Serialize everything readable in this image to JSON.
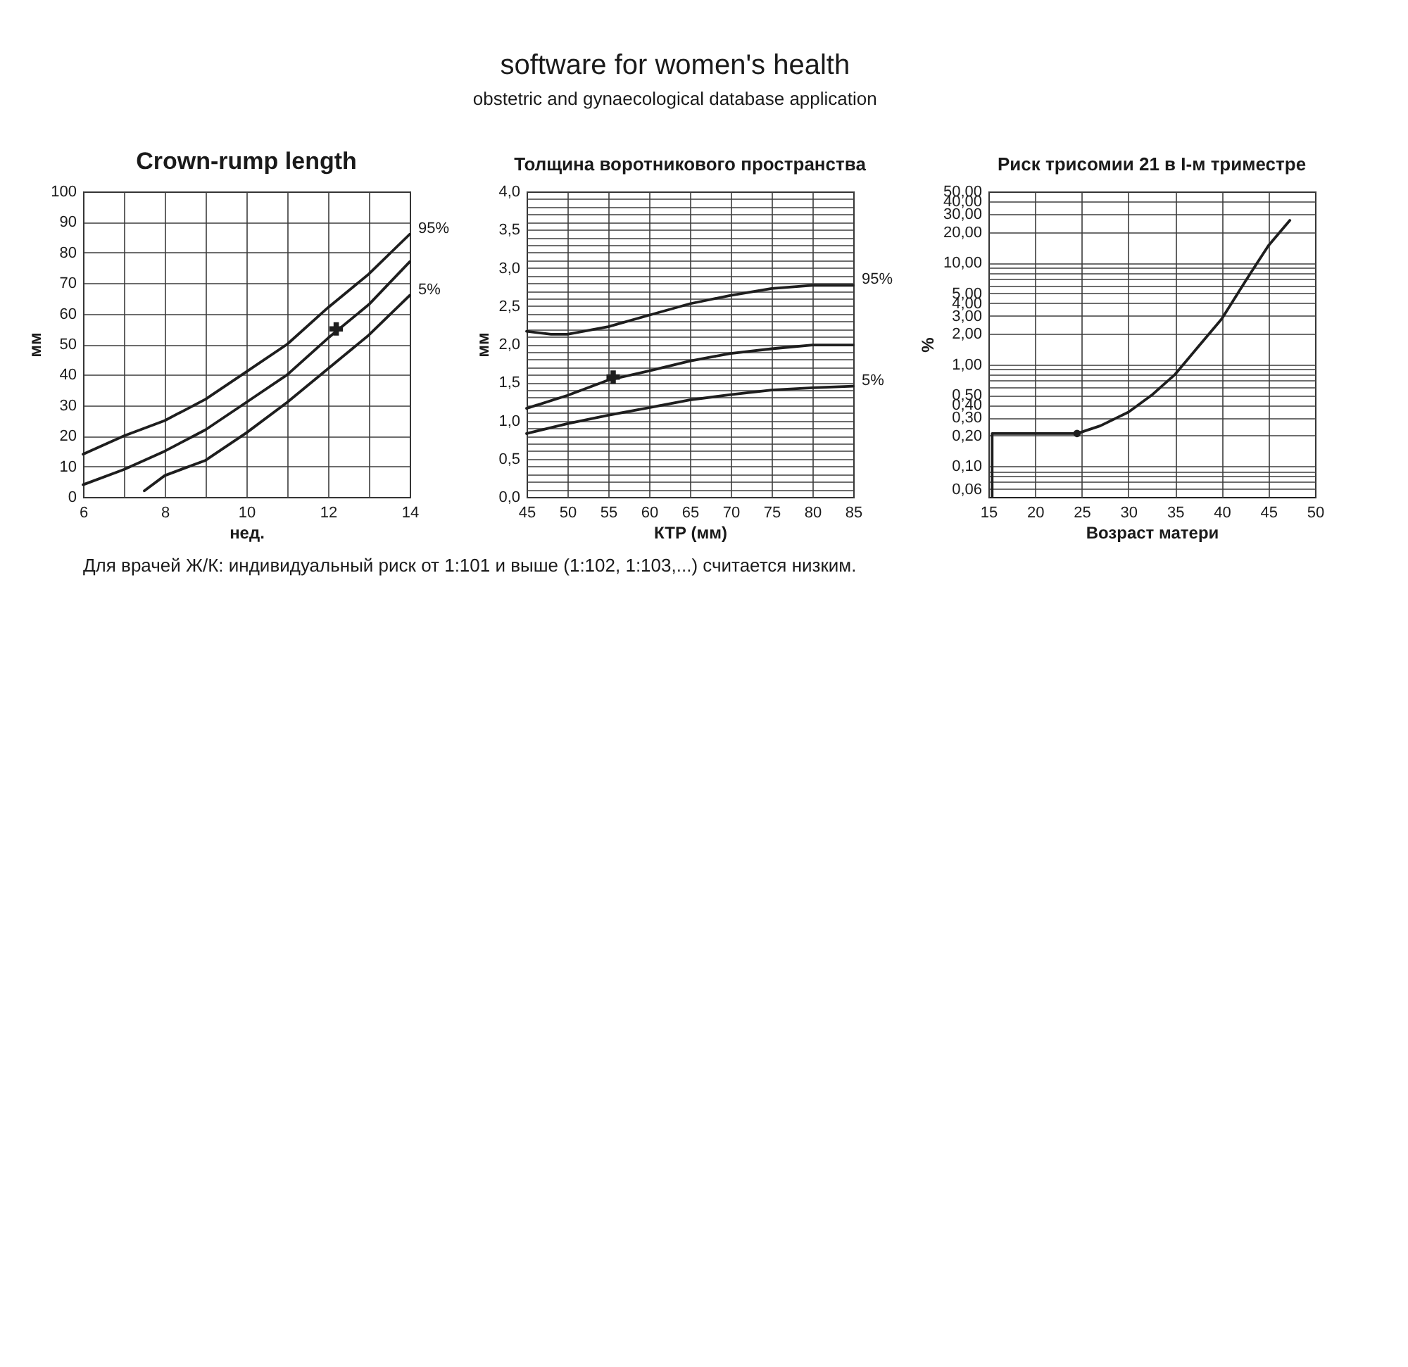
{
  "chart_data": [
    {
      "type": "line",
      "title": "Crown-rump length",
      "xlabel": "нед.",
      "ylabel": "мм",
      "annotations": [
        "software for women's health",
        "obstetric and gynaecological database application"
      ],
      "xlim": [
        6,
        14
      ],
      "ylim": [
        0,
        100
      ],
      "xticks": [
        6,
        {
          "value": 7,
          "label": null
        },
        8,
        {
          "value": 9,
          "label": null
        },
        10,
        {
          "value": 11,
          "label": null
        },
        12,
        {
          "value": 13,
          "label": null
        },
        14
      ],
      "yticks": [
        0,
        10,
        20,
        30,
        40,
        50,
        60,
        70,
        80,
        90,
        100
      ],
      "grid": true,
      "marker": "none",
      "line_style": "solid",
      "series": [
        {
          "name": "95%",
          "color": "#1e1e1e",
          "x": [
            6,
            7,
            8,
            9,
            10,
            11,
            12,
            13,
            14
          ],
          "values": [
            14,
            20,
            25,
            32,
            41,
            50,
            62,
            73,
            86
          ]
        },
        {
          "color": "#1e1e1e",
          "x": [
            6,
            7,
            8,
            9,
            10,
            11,
            12,
            13,
            14
          ],
          "values": [
            4,
            9,
            15,
            22,
            31,
            40,
            52,
            63,
            77
          ]
        },
        {
          "name": "5%",
          "color": "#1e1e1e",
          "x": [
            7.5,
            8,
            9,
            10,
            11,
            12,
            13,
            14
          ],
          "values": [
            2,
            7,
            12,
            21,
            31,
            42,
            53,
            66
          ]
        },
        {
          "type": "scatter",
          "marker": "cross",
          "color": "#1e1e1e",
          "x": [
            12.2
          ],
          "values": [
            55
          ]
        }
      ]
    },
    {
      "type": "line",
      "title": "Толщина воротникового пространства",
      "xlabel": "КТР (мм)",
      "ylabel": "мм",
      "xlim": [
        45,
        85
      ],
      "ylim": [
        0,
        4
      ],
      "xticks": [
        45,
        50,
        55,
        60,
        65,
        70,
        75,
        80,
        85
      ],
      "yticks": [
        {
          "value": 0,
          "label": "0,0"
        },
        {
          "value": 0.1,
          "label": null
        },
        {
          "value": 0.2,
          "label": null
        },
        {
          "value": 0.3,
          "label": null
        },
        {
          "value": 0.4,
          "label": null
        },
        {
          "value": 0.5,
          "label": "0,5"
        },
        {
          "value": 0.6,
          "label": null
        },
        {
          "value": 0.7,
          "label": null
        },
        {
          "value": 0.8,
          "label": null
        },
        {
          "value": 0.9,
          "label": null
        },
        {
          "value": 1,
          "label": "1,0"
        },
        {
          "value": 1.1,
          "label": null
        },
        {
          "value": 1.2,
          "label": null
        },
        {
          "value": 1.3,
          "label": null
        },
        {
          "value": 1.4,
          "label": null
        },
        {
          "value": 1.5,
          "label": "1,5"
        },
        {
          "value": 1.6,
          "label": null
        },
        {
          "value": 1.7,
          "label": null
        },
        {
          "value": 1.8,
          "label": null
        },
        {
          "value": 1.9,
          "label": null
        },
        {
          "value": 2,
          "label": "2,0"
        },
        {
          "value": 2.1,
          "label": null
        },
        {
          "value": 2.2,
          "label": null
        },
        {
          "value": 2.3,
          "label": null
        },
        {
          "value": 2.4,
          "label": null
        },
        {
          "value": 2.5,
          "label": "2,5"
        },
        {
          "value": 2.6,
          "label": null
        },
        {
          "value": 2.7,
          "label": null
        },
        {
          "value": 2.8,
          "label": null
        },
        {
          "value": 2.9,
          "label": null
        },
        {
          "value": 3,
          "label": "3,0"
        },
        {
          "value": 3.1,
          "label": null
        },
        {
          "value": 3.2,
          "label": null
        },
        {
          "value": 3.3,
          "label": null
        },
        {
          "value": 3.4,
          "label": null
        },
        {
          "value": 3.5,
          "label": "3,5"
        },
        {
          "value": 3.6,
          "label": null
        },
        {
          "value": 3.7,
          "label": null
        },
        {
          "value": 3.8,
          "label": null
        },
        {
          "value": 3.9,
          "label": null
        },
        {
          "value": 4,
          "label": "4,0"
        }
      ],
      "grid": true,
      "marker": "none",
      "line_style": "solid",
      "series": [
        {
          "name": "95%",
          "color": "#1e1e1e",
          "x": [
            45,
            48,
            50,
            55,
            60,
            65,
            70,
            75,
            80,
            85
          ],
          "values": [
            2.17,
            2.13,
            2.13,
            2.23,
            2.38,
            2.53,
            2.64,
            2.73,
            2.77,
            2.77
          ]
        },
        {
          "color": "#1e1e1e",
          "x": [
            45,
            50,
            55,
            60,
            65,
            70,
            75,
            80,
            85
          ],
          "values": [
            1.16,
            1.33,
            1.53,
            1.65,
            1.78,
            1.88,
            1.94,
            1.99,
            1.99
          ]
        },
        {
          "name": "5%",
          "color": "#1e1e1e",
          "x": [
            45,
            50,
            55,
            60,
            65,
            70,
            75,
            80,
            85
          ],
          "values": [
            0.83,
            0.96,
            1.07,
            1.17,
            1.27,
            1.34,
            1.4,
            1.43,
            1.45
          ]
        },
        {
          "type": "scatter",
          "marker": "cross",
          "color": "#1e1e1e",
          "x": [
            55.6
          ],
          "values": [
            1.57
          ]
        }
      ]
    },
    {
      "type": "line",
      "title": "Риск трисомии 21 в I-м триместре",
      "xlabel": "Возраст матери",
      "ylabel": "%",
      "annotations": [
        "Для врачей Ж/К: индивидуальный риск от 1:101 и выше (1:102, 1:103,...) считается низким."
      ],
      "xlim": [
        15,
        50
      ],
      "ylim": [
        0.05,
        50
      ],
      "log": "y",
      "xticks": [
        15,
        20,
        25,
        30,
        35,
        40,
        45,
        50
      ],
      "yticks": [
        {
          "value": 0.06,
          "label": "0,06"
        },
        {
          "value": 0.07,
          "label": null
        },
        {
          "value": 0.08,
          "label": null
        },
        {
          "value": 0.09,
          "label": null
        },
        {
          "value": 0.1,
          "label": "0,10"
        },
        {
          "value": 0.2,
          "label": "0,20"
        },
        {
          "value": 0.3,
          "label": "0,30"
        },
        {
          "value": 0.4,
          "label": "0,40"
        },
        {
          "value": 0.5,
          "label": "0,50"
        },
        {
          "value": 0.6,
          "label": null
        },
        {
          "value": 0.7,
          "label": null
        },
        {
          "value": 0.8,
          "label": null
        },
        {
          "value": 0.9,
          "label": null
        },
        {
          "value": 1,
          "label": "1,00"
        },
        {
          "value": 2,
          "label": "2,00"
        },
        {
          "value": 3,
          "label": "3,00"
        },
        {
          "value": 4,
          "label": "4,00"
        },
        {
          "value": 5,
          "label": "5,00"
        },
        {
          "value": 6,
          "label": null
        },
        {
          "value": 7,
          "label": null
        },
        {
          "value": 8,
          "label": null
        },
        {
          "value": 9,
          "label": null
        },
        {
          "value": 10,
          "label": "10,00"
        },
        {
          "value": 20,
          "label": "20,00"
        },
        {
          "value": 30,
          "label": "30,00"
        },
        {
          "value": 40,
          "label": "40,00"
        },
        {
          "value": 50,
          "label": "50,00"
        }
      ],
      "grid": true,
      "marker": "none",
      "line_style": "solid",
      "series": [
        {
          "color": "#1e1e1e",
          "x": [
            15.4,
            15.4,
            20,
            24.5,
            27,
            30,
            32.5,
            35,
            37.5,
            40,
            42.5,
            45,
            47.3
          ],
          "values": [
            0.05,
            0.21,
            0.21,
            0.21,
            0.25,
            0.34,
            0.5,
            0.8,
            1.5,
            2.8,
            6.5,
            14.7,
            26
          ]
        },
        {
          "type": "scatter",
          "marker": "circle",
          "color": "#1e1e1e",
          "x": [
            24.5
          ],
          "values": [
            0.21
          ]
        }
      ]
    }
  ]
}
